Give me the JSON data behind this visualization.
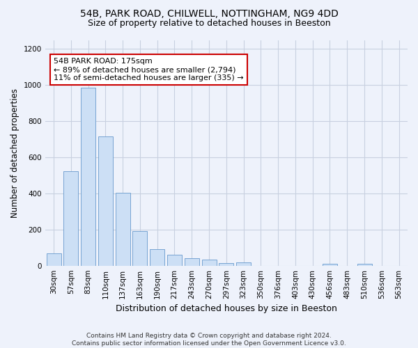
{
  "title1": "54B, PARK ROAD, CHILWELL, NOTTINGHAM, NG9 4DD",
  "title2": "Size of property relative to detached houses in Beeston",
  "xlabel": "Distribution of detached houses by size in Beeston",
  "ylabel": "Number of detached properties",
  "bar_color": "#ccdff5",
  "bar_edge_color": "#6699cc",
  "categories": [
    "30sqm",
    "57sqm",
    "83sqm",
    "110sqm",
    "137sqm",
    "163sqm",
    "190sqm",
    "217sqm",
    "243sqm",
    "270sqm",
    "297sqm",
    "323sqm",
    "350sqm",
    "376sqm",
    "403sqm",
    "430sqm",
    "456sqm",
    "483sqm",
    "510sqm",
    "536sqm",
    "563sqm"
  ],
  "values": [
    68,
    523,
    985,
    717,
    403,
    193,
    90,
    60,
    40,
    32,
    16,
    19,
    0,
    0,
    0,
    0,
    12,
    0,
    10,
    0,
    0
  ],
  "ylim": [
    0,
    1250
  ],
  "yticks": [
    0,
    200,
    400,
    600,
    800,
    1000,
    1200
  ],
  "annotation_line1": "54B PARK ROAD: 175sqm",
  "annotation_line2": "← 89% of detached houses are smaller (2,794)",
  "annotation_line3": "11% of semi-detached houses are larger (335) →",
  "annotation_box_color": "#ffffff",
  "annotation_border_color": "#cc0000",
  "footer_line1": "Contains HM Land Registry data © Crown copyright and database right 2024.",
  "footer_line2": "Contains public sector information licensed under the Open Government Licence v3.0.",
  "bg_color": "#eef2fb",
  "grid_color": "#c8d0e0",
  "title1_fontsize": 10,
  "title2_fontsize": 9,
  "tick_fontsize": 7.5,
  "ylabel_fontsize": 8.5,
  "xlabel_fontsize": 9,
  "annotation_fontsize": 8,
  "footer_fontsize": 6.5
}
